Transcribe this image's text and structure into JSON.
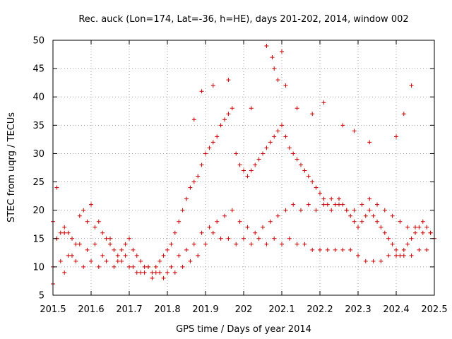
{
  "chart_data": {
    "type": "scatter",
    "title": "Rec. auck (Lon=174, Lat=-36, h=HE), days 201-202, 2014, window 002",
    "xlabel": "GPS time / Days of year 2014",
    "ylabel": "STEC from uqrg / TECUs",
    "xlim": [
      201.5,
      202.5
    ],
    "ylim": [
      5,
      50
    ],
    "x_ticks": [
      201.5,
      201.6,
      201.7,
      201.8,
      201.9,
      202.0,
      202.1,
      202.2,
      202.3,
      202.4,
      202.5
    ],
    "x_tick_labels": [
      "201.5",
      "201.6",
      "201.7",
      "201.8",
      "201.9",
      "202",
      "202.1",
      "202.2",
      "202.3",
      "202.4",
      "202.5"
    ],
    "y_ticks": [
      5,
      10,
      15,
      20,
      25,
      30,
      35,
      40,
      45,
      50
    ],
    "y_tick_labels": [
      "5",
      "10",
      "15",
      "20",
      "25",
      "30",
      "35",
      "40",
      "45",
      "50"
    ],
    "grid": true,
    "marker": "+",
    "marker_color": "#cc0000",
    "series": [
      {
        "name": "STEC",
        "x": [
          201.5,
          201.5,
          201.51,
          201.51,
          201.52,
          201.53,
          201.53,
          201.54,
          201.55,
          201.56,
          201.57,
          201.58,
          201.59,
          201.6,
          201.61,
          201.62,
          201.63,
          201.64,
          201.65,
          201.66,
          201.67,
          201.68,
          201.69,
          201.7,
          201.71,
          201.72,
          201.73,
          201.74,
          201.75,
          201.76,
          201.77,
          201.78,
          201.79,
          201.8,
          201.81,
          201.82,
          201.83,
          201.84,
          201.85,
          201.86,
          201.87,
          201.88,
          201.89,
          201.9,
          201.91,
          201.92,
          201.93,
          201.94,
          201.95,
          201.96,
          201.97,
          201.98,
          201.99,
          202.0,
          202.01,
          202.02,
          202.03,
          202.04,
          202.05,
          202.06,
          202.07,
          202.08,
          202.09,
          202.1,
          202.11,
          202.12,
          202.13,
          202.14,
          202.15,
          202.16,
          202.17,
          202.18,
          202.19,
          202.2,
          202.21,
          202.22,
          202.23,
          202.24,
          202.25,
          202.26,
          202.27,
          202.28,
          202.29,
          202.3,
          202.31,
          202.32,
          202.33,
          202.34,
          202.35,
          202.36,
          202.37,
          202.38,
          202.39,
          202.4,
          202.41,
          202.42,
          202.43,
          202.44,
          202.45,
          202.46,
          202.47,
          202.48,
          202.49,
          202.5,
          201.5,
          201.52,
          201.54,
          201.56,
          201.58,
          201.6,
          201.62,
          201.64,
          201.66,
          201.68,
          201.7,
          201.72,
          201.74,
          201.76,
          201.78,
          201.8,
          201.82,
          201.84,
          201.86,
          201.88,
          201.9,
          201.92,
          201.94,
          201.96,
          201.98,
          202.0,
          202.02,
          202.04,
          202.06,
          202.08,
          202.1,
          202.12,
          202.14,
          202.16,
          202.18,
          202.2,
          202.22,
          202.24,
          202.26,
          202.28,
          202.3,
          202.32,
          202.34,
          202.36,
          202.38,
          202.4,
          202.42,
          202.44,
          202.46,
          202.48,
          201.51,
          201.53,
          201.55,
          201.57,
          201.59,
          201.61,
          201.63,
          201.65,
          201.67,
          201.69,
          201.71,
          201.73,
          201.75,
          201.77,
          201.79,
          201.81,
          201.83,
          201.85,
          201.87,
          201.89,
          201.91,
          201.93,
          201.95,
          201.97,
          201.99,
          202.01,
          202.03,
          202.05,
          202.07,
          202.09,
          202.11,
          202.13,
          202.15,
          202.17,
          202.19,
          202.21,
          202.23,
          202.25,
          202.27,
          202.29,
          202.31,
          202.33,
          202.35,
          202.37,
          202.39,
          202.41,
          202.43,
          202.45,
          202.47,
          202.49,
          201.87,
          201.89,
          201.92,
          201.96,
          202.02,
          202.06,
          202.075,
          202.08,
          202.09,
          202.1,
          202.11,
          202.14,
          202.18,
          202.21,
          202.26,
          202.29,
          202.33,
          202.4,
          202.42,
          202.44
        ],
        "y": [
          18,
          7,
          24,
          15,
          16,
          17,
          9,
          16,
          15,
          14,
          19,
          20,
          18,
          21,
          17,
          18,
          16,
          15,
          14,
          13,
          12,
          13,
          14,
          15,
          13,
          12,
          11,
          10,
          10,
          9,
          10,
          11,
          12,
          13,
          14,
          16,
          18,
          20,
          22,
          24,
          25,
          26,
          28,
          30,
          31,
          32,
          33,
          35,
          36,
          37,
          38,
          30,
          28,
          27,
          26,
          27,
          28,
          29,
          30,
          31,
          32,
          33,
          34,
          35,
          33,
          31,
          30,
          29,
          28,
          27,
          26,
          25,
          24,
          23,
          22,
          21,
          20,
          21,
          22,
          21,
          20,
          19,
          18,
          17,
          18,
          19,
          20,
          19,
          18,
          17,
          16,
          15,
          14,
          13,
          12,
          13,
          14,
          15,
          16,
          17,
          18,
          17,
          16,
          15,
          10,
          11,
          12,
          11,
          10,
          11,
          10,
          11,
          10,
          11,
          10,
          9,
          9,
          8,
          9,
          9,
          9,
          10,
          11,
          12,
          14,
          16,
          15,
          15,
          14,
          15,
          14,
          15,
          14,
          15,
          14,
          15,
          14,
          14,
          13,
          13,
          13,
          13,
          13,
          13,
          12,
          11,
          11,
          11,
          12,
          12,
          12,
          12,
          13,
          13,
          15,
          16,
          12,
          14,
          13,
          14,
          12,
          15,
          11,
          12,
          10,
          9,
          10,
          9,
          8,
          10,
          12,
          13,
          14,
          16,
          17,
          18,
          19,
          20,
          18,
          17,
          16,
          17,
          18,
          19,
          20,
          21,
          20,
          21,
          20,
          21,
          22,
          21,
          20,
          20,
          21,
          22,
          21,
          20,
          19,
          18,
          17,
          17,
          16,
          16,
          36,
          41,
          42,
          43,
          38,
          49,
          47,
          45,
          43,
          48,
          42,
          38,
          37,
          39,
          35,
          34,
          32,
          33,
          37,
          42
        ]
      }
    ]
  }
}
